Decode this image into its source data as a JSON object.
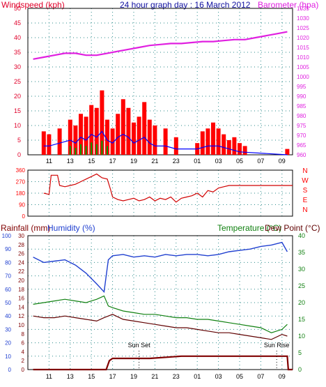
{
  "header": {
    "left_axis_title": "Windspeed (kph)",
    "center_title": "24 hour graph day : 16 March 2012",
    "right_axis_title": "Barometer (hpa)"
  },
  "colors": {
    "windspeed_axis": "#e0002a",
    "barometer": "#e020e0",
    "title": "#1010a0",
    "gust": "#ff0000",
    "avg_wind": "#0000ff",
    "wind_green": "#00a000",
    "direction": "#d00000",
    "humidity": "#2040d0",
    "temperature": "#108010",
    "dew_point": "#600000",
    "rainfall": "#800000",
    "grid": "#2a8a8a"
  },
  "chart_data": [
    {
      "type": "line",
      "name_left": "Windspeed (kph)",
      "name_right": "Barometer (hpa)",
      "x_tick_labels": [
        "11",
        "13",
        "15",
        "17",
        "19",
        "21",
        "23",
        "01",
        "03",
        "05",
        "07",
        "09"
      ],
      "ylim_left": [
        0,
        50
      ],
      "y_ticks_left": [
        0,
        5,
        10,
        15,
        20,
        25,
        30,
        35,
        40,
        45,
        50
      ],
      "ylim_right": [
        960,
        1035
      ],
      "y_ticks_right": [
        960,
        965,
        970,
        975,
        980,
        985,
        990,
        995,
        1000,
        1005,
        1010,
        1015,
        1020,
        1025,
        1030,
        1035
      ],
      "barometer": {
        "x": [
          9.5,
          10.5,
          11.5,
          12.5,
          13.5,
          14.5,
          15.5,
          16.5,
          17.5,
          18.5,
          19.5,
          20.5,
          21.5,
          22.5,
          23.5,
          24.5,
          25.5,
          26.5,
          27.5,
          28.5,
          29.5,
          30.5,
          31.5,
          32.5,
          33.5
        ],
        "values": [
          1009,
          1010,
          1011,
          1012,
          1012,
          1011,
          1011,
          1012,
          1013,
          1014,
          1015,
          1016,
          1016.5,
          1017,
          1017,
          1017.5,
          1018,
          1018,
          1018.5,
          1019,
          1019,
          1020,
          1021,
          1022,
          1023
        ]
      },
      "gust_peaks": {
        "x": [
          10.5,
          11,
          12,
          13,
          13.5,
          14,
          14.5,
          15,
          15.5,
          16,
          16.5,
          17,
          17.5,
          18,
          18.5,
          19,
          19.5,
          20,
          20.5,
          21,
          22,
          23,
          25,
          25.5,
          26,
          26.5,
          27,
          27.5,
          28,
          28.5,
          29,
          29.5,
          33.5
        ],
        "values": [
          8,
          7,
          9,
          12,
          10,
          14,
          13,
          17,
          16,
          22,
          12,
          9,
          14,
          19,
          16,
          11,
          13,
          18,
          12,
          10,
          9,
          6,
          4,
          8,
          9,
          11,
          9,
          7,
          5,
          6,
          4,
          3,
          2
        ]
      },
      "avg_wind_peaks": {
        "x": [
          10.5,
          11,
          12,
          13,
          13.5,
          14,
          14.5,
          15,
          15.5,
          16,
          16.5,
          17,
          17.5,
          18,
          18.5,
          19,
          19.5,
          20,
          20.5,
          21,
          22,
          23,
          25,
          26,
          27,
          28,
          29,
          33.5
        ],
        "values": [
          3,
          3,
          4,
          5,
          4,
          6,
          5,
          7,
          6,
          8,
          5,
          4,
          6,
          7,
          6,
          4,
          5,
          6,
          4,
          3,
          3,
          2,
          2,
          3,
          3,
          2,
          1,
          0
        ]
      }
    },
    {
      "type": "line",
      "name": "Wind direction",
      "ylim": [
        0,
        360
      ],
      "y_ticks": [
        0,
        90,
        180,
        270,
        360
      ],
      "compass_labels": [
        "N",
        "W",
        "S",
        "E",
        "N"
      ],
      "x": [
        10.5,
        11,
        11.2,
        11.8,
        12,
        12.5,
        13,
        13.5,
        14,
        14.5,
        15,
        15.5,
        16,
        16.5,
        16.8,
        17,
        17.5,
        18,
        18.5,
        19,
        19.5,
        20,
        20.5,
        21,
        21.5,
        22,
        22.5,
        23,
        23.5,
        24,
        24.5,
        25,
        25.5,
        26,
        26.5,
        27,
        27.5,
        28,
        29,
        30,
        31,
        32,
        33,
        34
      ],
      "values": [
        180,
        170,
        320,
        320,
        240,
        230,
        240,
        250,
        270,
        290,
        310,
        330,
        300,
        290,
        210,
        150,
        130,
        120,
        130,
        140,
        120,
        130,
        150,
        120,
        140,
        130,
        150,
        110,
        140,
        150,
        160,
        180,
        150,
        200,
        190,
        220,
        230,
        240,
        240,
        240,
        240,
        240,
        240,
        240
      ]
    },
    {
      "type": "line",
      "axis_titles": [
        "Rainfall (mm)",
        "Humidity (%)",
        "Temperature (°C)",
        "Dew Point (°C)"
      ],
      "humidity_ticks": [
        0,
        10,
        20,
        30,
        40,
        50,
        60,
        70,
        80,
        90,
        100
      ],
      "rainfall_ticks": [
        0,
        2,
        4,
        6,
        8,
        10,
        12,
        14,
        16,
        18,
        20,
        22,
        24,
        26,
        28,
        30
      ],
      "temperature_ticks": [
        0,
        5,
        10,
        15,
        20,
        25,
        30,
        35,
        40
      ],
      "annotations": [
        {
          "text": "Sun Set",
          "x": 19.5
        },
        {
          "text": "Sun Rise",
          "x": 32.5
        }
      ],
      "humidity": {
        "x": [
          9.5,
          10.5,
          11.5,
          12.5,
          13.5,
          14.5,
          15.5,
          16.2,
          16.6,
          17,
          18,
          19,
          20,
          21,
          22,
          23,
          24,
          25,
          26,
          27,
          28,
          29,
          30,
          31,
          32,
          33,
          33.5
        ],
        "values": [
          84,
          80,
          81,
          82,
          78,
          72,
          64,
          58,
          82,
          85,
          86,
          84,
          85,
          84,
          86,
          85,
          86,
          86,
          85,
          86,
          88,
          89,
          90,
          92,
          93,
          95,
          88
        ]
      },
      "temperature": {
        "x": [
          9.5,
          10.5,
          11.5,
          12.5,
          13.5,
          14.5,
          15.5,
          16.2,
          16.6,
          17,
          18,
          19,
          20,
          21,
          22,
          23,
          24,
          25,
          26,
          27,
          28,
          29,
          30,
          31,
          32,
          33,
          33.5
        ],
        "values": [
          19.5,
          20,
          20.5,
          21,
          20.5,
          20,
          21,
          22,
          19,
          18.5,
          17.5,
          17,
          16.5,
          16.5,
          16,
          15.5,
          15.5,
          15,
          15,
          14.5,
          14,
          13.5,
          13,
          12.5,
          11,
          12,
          13.5
        ]
      },
      "dew_point": {
        "x": [
          9.5,
          10.5,
          11.5,
          12.5,
          13.5,
          14.5,
          15.5,
          16.2,
          16.6,
          17,
          18,
          19,
          20,
          21,
          22,
          23,
          24,
          25,
          26,
          27,
          28,
          29,
          30,
          31,
          32,
          33,
          33.5
        ],
        "values": [
          16,
          15.5,
          15.5,
          16,
          15.5,
          15,
          14.5,
          15.5,
          16,
          16.5,
          15,
          14.5,
          14,
          13.5,
          13,
          12.5,
          12.5,
          12,
          11.5,
          11,
          11,
          10.5,
          10,
          9.5,
          9,
          10.5,
          10
        ]
      },
      "rainfall": {
        "x": [
          9.5,
          16.4,
          16.7,
          17,
          20,
          20.5,
          23.5,
          24,
          33.5,
          33.6,
          34
        ],
        "values": [
          0,
          0,
          2,
          2.5,
          2.5,
          2.5,
          3,
          3,
          3,
          0,
          0
        ]
      }
    }
  ]
}
